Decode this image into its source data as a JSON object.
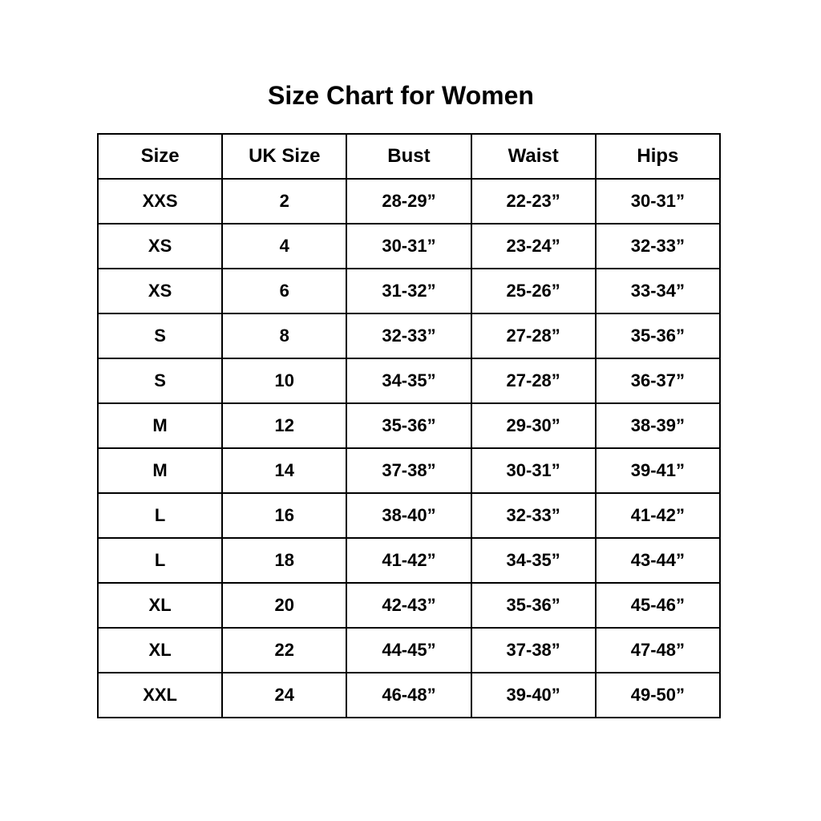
{
  "page": {
    "title": "Size Chart for Women",
    "background_color": "#ffffff",
    "text_color": "#000000",
    "border_color": "#000000"
  },
  "chart_data": {
    "type": "table",
    "title": "Size Chart for Women",
    "columns": [
      "Size",
      "UK Size",
      "Bust",
      "Waist",
      "Hips"
    ],
    "rows": [
      [
        "XXS",
        "2",
        "28-29”",
        "22-23”",
        "30-31”"
      ],
      [
        "XS",
        "4",
        "30-31”",
        "23-24”",
        "32-33”"
      ],
      [
        "XS",
        "6",
        "31-32”",
        "25-26”",
        "33-34”"
      ],
      [
        "S",
        "8",
        "32-33”",
        "27-28”",
        "35-36”"
      ],
      [
        "S",
        "10",
        "34-35”",
        "27-28”",
        "36-37”"
      ],
      [
        "M",
        "12",
        "35-36”",
        "29-30”",
        "38-39”"
      ],
      [
        "M",
        "14",
        "37-38”",
        "30-31”",
        "39-41”"
      ],
      [
        "L",
        "16",
        "38-40”",
        "32-33”",
        "41-42”"
      ],
      [
        "L",
        "18",
        "41-42”",
        "34-35”",
        "43-44”"
      ],
      [
        "XL",
        "20",
        "42-43”",
        "35-36”",
        "45-46”"
      ],
      [
        "XL",
        "22",
        "44-45”",
        "37-38”",
        "47-48”"
      ],
      [
        "XXL",
        "24",
        "46-48”",
        "39-40”",
        "49-50”"
      ]
    ],
    "layout": {
      "grid": true,
      "columns_equal_width": true,
      "all_text_bold": true,
      "alignment": "center"
    }
  }
}
